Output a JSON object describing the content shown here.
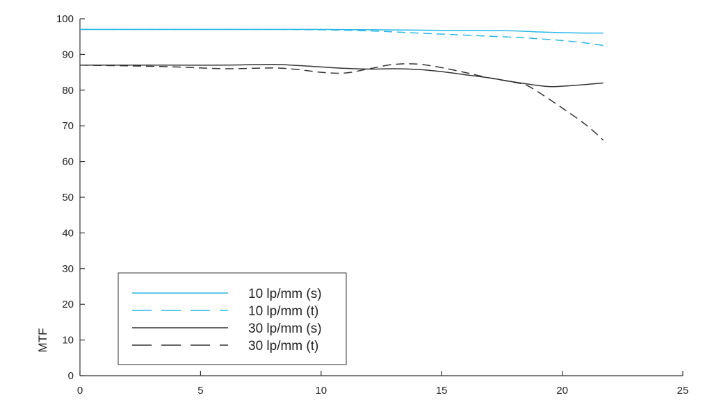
{
  "chart_data": {
    "type": "line",
    "title": "",
    "xlabel": "",
    "ylabel": "MTF",
    "xlim": [
      0,
      25
    ],
    "ylim": [
      0,
      100
    ],
    "xticks": [
      0,
      5,
      10,
      15,
      20,
      25
    ],
    "yticks": [
      0,
      10,
      20,
      30,
      40,
      50,
      60,
      70,
      80,
      90,
      100
    ],
    "grid": false,
    "legend_position": "bottom-left",
    "series": [
      {
        "name": "10 lp/mm (s)",
        "color": "#29b7e6",
        "dash": "solid",
        "x": [
          0,
          2,
          4,
          6,
          8,
          10,
          12,
          14,
          16,
          18,
          19,
          20,
          21,
          21.7
        ],
        "y": [
          97,
          97,
          97,
          97,
          97,
          97,
          96.9,
          96.8,
          96.7,
          96.6,
          96.3,
          96.1,
          96,
          96
        ]
      },
      {
        "name": "10 lp/mm (t)",
        "color": "#29b7e6",
        "dash": "dashed",
        "x": [
          0,
          2,
          4,
          6,
          8,
          10,
          12,
          14,
          16,
          18,
          19,
          20,
          21,
          21.7
        ],
        "y": [
          97,
          97,
          97,
          97,
          97,
          96.9,
          96.6,
          96,
          95.4,
          94.8,
          94.4,
          93.9,
          93.2,
          92.5
        ]
      },
      {
        "name": "30 lp/mm (s)",
        "color": "#333333",
        "dash": "solid",
        "x": [
          0,
          2,
          4,
          6,
          8,
          9,
          10,
          11,
          12,
          13,
          14,
          15,
          16,
          17,
          18,
          19,
          19.5,
          20,
          21,
          21.7
        ],
        "y": [
          87,
          87,
          87,
          87,
          87.2,
          86.9,
          86.5,
          86.1,
          85.9,
          86,
          85.8,
          85.2,
          84.3,
          83.4,
          82.3,
          81.3,
          81,
          81.1,
          81.6,
          82
        ]
      },
      {
        "name": "30 lp/mm (t)",
        "color": "#333333",
        "dash": "dashed",
        "x": [
          0,
          2,
          4,
          6,
          8,
          9,
          10,
          11,
          12,
          13,
          14,
          15,
          16,
          17,
          18,
          18.5,
          19,
          20,
          21,
          21.7
        ],
        "y": [
          87,
          86.8,
          86.5,
          86,
          86.2,
          85.8,
          85,
          84.8,
          86,
          87.2,
          87.3,
          86.3,
          84.9,
          83.4,
          82.2,
          81.4,
          79.5,
          75,
          70.2,
          66
        ]
      }
    ]
  }
}
